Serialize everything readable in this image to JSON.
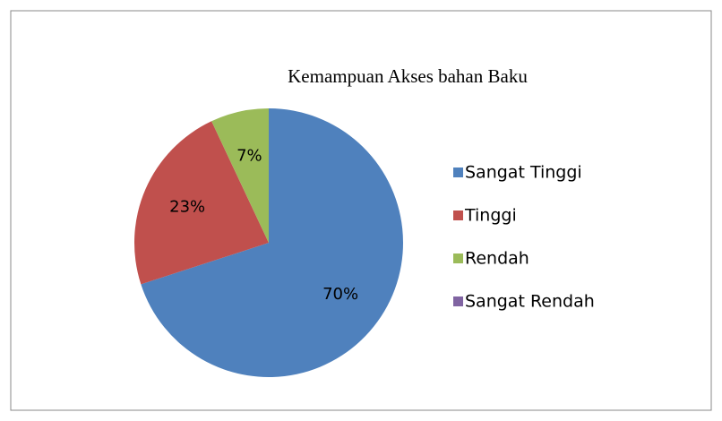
{
  "chart_data": {
    "type": "pie",
    "title": "Kemampuan Akses bahan Baku",
    "categories": [
      "Sangat Tinggi",
      "Tinggi",
      "Rendah",
      "Sangat Rendah"
    ],
    "values": [
      70,
      23,
      7,
      0
    ],
    "value_labels": [
      "70%",
      "23%",
      "7%",
      null
    ],
    "colors": [
      "#4f81bd",
      "#c0504d",
      "#9bbb59",
      "#8064a2"
    ],
    "legend": "right"
  }
}
